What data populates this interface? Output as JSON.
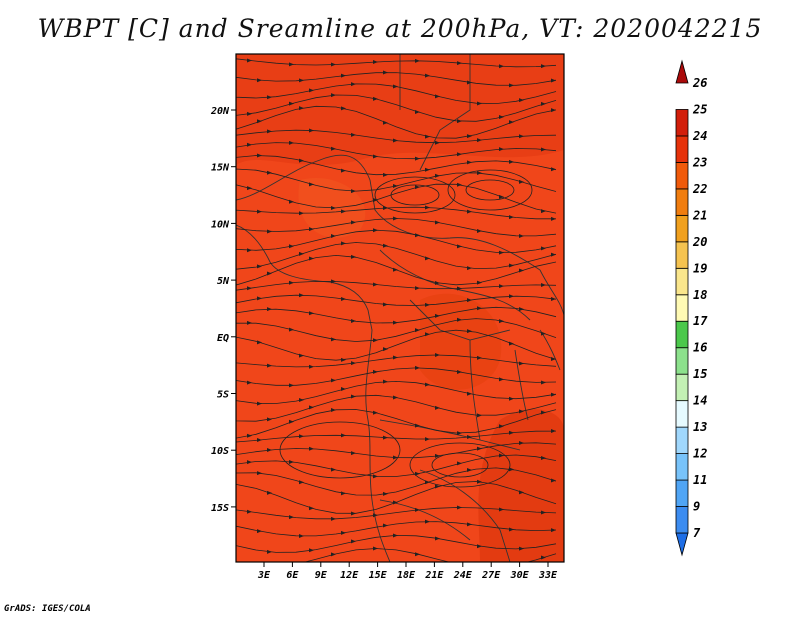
{
  "title": "WBPT [C] and Sreamline at 200hPa, VT: 2020042215",
  "credit": "GrADS: IGES/COLA",
  "map": {
    "lat_labels": [
      "20N",
      "15N",
      "10N",
      "5N",
      "EQ",
      "5S",
      "10S",
      "15S"
    ],
    "lon_labels": [
      "3E",
      "6E",
      "9E",
      "12E",
      "15E",
      "18E",
      "21E",
      "24E",
      "27E",
      "30E",
      "33E"
    ],
    "fill_color": "#f0461a"
  },
  "colorbar": {
    "labels": [
      "7",
      "9",
      "11",
      "12",
      "13",
      "14",
      "15",
      "16",
      "17",
      "18",
      "19",
      "20",
      "21",
      "22",
      "23",
      "24",
      "25",
      "26"
    ],
    "colors": [
      "#1e6ee6",
      "#3c8cf0",
      "#50a5f5",
      "#78c3fa",
      "#a0d7fc",
      "#e6faff",
      "#c3f0b4",
      "#8ce18c",
      "#4bc84b",
      "#fffab4",
      "#fae68c",
      "#f5c350",
      "#f0a01e",
      "#f07d0f",
      "#f05a0a",
      "#e6320a",
      "#d21e0a",
      "#aa0a0a"
    ]
  }
}
